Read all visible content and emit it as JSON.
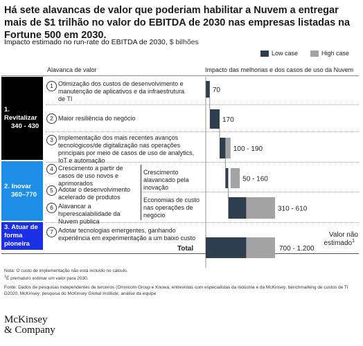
{
  "header": {
    "title": "Há sete alavancas de valor que poderiam habilitar a Nuvem a entregar mais de $1 trilhão no valor do EBITDA de 2030 nas empresas listadas na Fortune 500 em 2030.",
    "subtitle": "Impacto estimado no run-rate do EBITDA de 2030,",
    "subtitle_unit": "$ bilhões"
  },
  "legend": {
    "low_label": "Low case",
    "high_label": "High case",
    "low_color": "#2f3e4f",
    "high_color": "#a3a3a3"
  },
  "columns": {
    "left": "Alavanca de valor",
    "right": "Impacto das melhorias e dos casos de uso da Nuvem"
  },
  "groups": [
    {
      "number": "1.",
      "name": "Revitalizar",
      "range": "340 - 430",
      "color": "#000000"
    },
    {
      "number": "2.",
      "name": "Inovar",
      "range": "360–770",
      "color": "#1e8fe8"
    },
    {
      "number": "3.",
      "name": "Atuar de forma pioneira",
      "range": "",
      "color": "#1a2fe6"
    }
  ],
  "levers": [
    {
      "n": "1",
      "text": "Otimização dos custos de desenvolvimento e manutenção de aplicativos e da infraestrutura de TI",
      "value_label": "70"
    },
    {
      "n": "2",
      "text": "Maior resiliência do negócio",
      "value_label": "170"
    },
    {
      "n": "3",
      "text": "Implementação dos mais recentes avanços tecnológicos/de digitalização nas operações principais por meio de casos de uso de analytics, IoT e automação",
      "value_label": "100 - 190"
    },
    {
      "n": "4",
      "text": "Crescimento a partir de casos de uso novos e aprimorados",
      "value_label": "50 - 160"
    },
    {
      "n": "5",
      "text": "Adotar o desenvolvimento acelerado de produtos",
      "value_label": ""
    },
    {
      "n": "6",
      "text": "Alavancar a hiperescalabilidade da Nuvem pública",
      "value_label": "310 - 610"
    },
    {
      "n": "7",
      "text": "Adotar tecnologias emergentes, ganhando experiência em experimentação a um baixo custo",
      "value_label": "Valor não estimado",
      "superscript": "1"
    }
  ],
  "sub_groups": [
    {
      "text": "Crescimento alavancado pela inovação"
    },
    {
      "text": "Economias de custo nas operações de negócio"
    }
  ],
  "total": {
    "label": "Total",
    "value_label": "700 - 1.200"
  },
  "chart_data": {
    "type": "bar",
    "orientation": "horizontal waterfall",
    "title": "Impacto estimado no run-rate do EBITDA de 2030, $ bilhões",
    "series": [
      {
        "name": "Low case",
        "color": "#2f3e4f"
      },
      {
        "name": "High case",
        "color": "#a3a3a3"
      }
    ],
    "rows": [
      {
        "label": "Otimização dos custos de desenvolvimento e manutenção de aplicativos e da infraestrutura de TI",
        "low": 70,
        "high": 70
      },
      {
        "label": "Maior resiliência do negócio",
        "low": 170,
        "high": 170
      },
      {
        "label": "Implementação dos mais recentes avanços tecnológicos/de digitalização nas operações principais",
        "low": 100,
        "high": 190
      },
      {
        "label": "Crescimento alavancado pela inovação",
        "low": 50,
        "high": 160
      },
      {
        "label": "Economias de custo nas operações de negócio",
        "low": 310,
        "high": 610
      },
      {
        "label": "Adotar tecnologias emergentes",
        "low": null,
        "high": null
      }
    ],
    "total": {
      "low": 700,
      "high": 1200
    },
    "xlim": [
      0,
      1200
    ]
  },
  "footnotes": {
    "note": "Nota: O custo de implementação não está incluído no cálculo.",
    "note1": "É prematuro estimar um valor para 2030.",
    "note1_mark": "1",
    "source": "Fonte: Dados de pesquisas independentes de terceiros (Omnicom Group e Knowa; entrevistas com especialistas da indústria e da McKinsey; benchmarking de custos de TI D2020, McKinsey; pesquisa do McKinsey Global Institute; análise da equipe"
  },
  "logo": {
    "line1": "McKinsey",
    "line2": "& Company"
  }
}
